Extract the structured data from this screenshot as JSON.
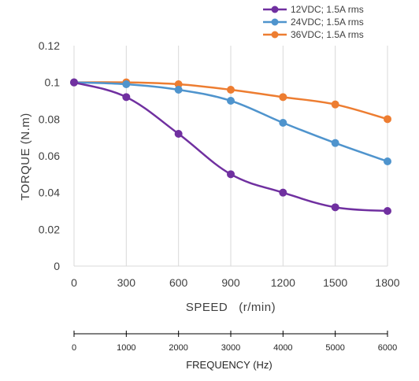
{
  "chart_data": {
    "type": "line",
    "x_categories": [
      "0",
      "300",
      "600",
      "900",
      "1200",
      "1500",
      "1800"
    ],
    "x_values": [
      0,
      300,
      600,
      900,
      1200,
      1500,
      1800
    ],
    "xlabel": "SPEED   (r/min)",
    "ylabel": "TORQUE (N.m)",
    "ylim": [
      0,
      0.12
    ],
    "y_ticks": [
      {
        "value": 0,
        "label": "0"
      },
      {
        "value": 0.02,
        "label": "0.02"
      },
      {
        "value": 0.04,
        "label": "0.04"
      },
      {
        "value": 0.06,
        "label": "0.06"
      },
      {
        "value": 0.08,
        "label": "0.08"
      },
      {
        "value": 0.1,
        "label": "0.1"
      },
      {
        "value": 0.12,
        "label": "0.12"
      }
    ],
    "grid": "vertical",
    "legend_position": "top-right",
    "series": [
      {
        "name": "12VDC; 1.5A rms",
        "color": "#7030A0",
        "values": [
          0.1,
          0.092,
          0.072,
          0.05,
          0.04,
          0.032,
          0.03
        ]
      },
      {
        "name": "24VDC; 1.5A rms",
        "color": "#4F94CD",
        "values": [
          0.1,
          0.099,
          0.096,
          0.09,
          0.078,
          0.067,
          0.057
        ]
      },
      {
        "name": "36VDC; 1.5A rms",
        "color": "#ED7D31",
        "values": [
          0.1,
          0.1,
          0.099,
          0.096,
          0.092,
          0.088,
          0.08
        ]
      }
    ],
    "secondary_axis": {
      "label": "FREQUENCY (Hz)",
      "ticks": [
        "0",
        "1000",
        "2000",
        "3000",
        "4000",
        "5000",
        "6000"
      ]
    }
  }
}
